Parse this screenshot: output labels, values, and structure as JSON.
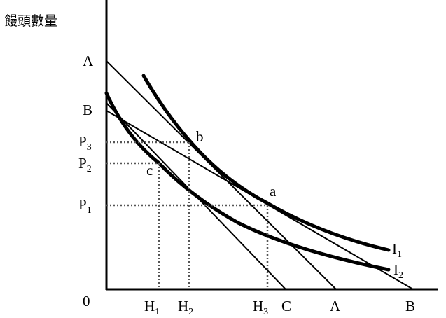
{
  "y_axis_title": "饅頭數量",
  "y_labels": {
    "A": "A",
    "B": "B",
    "P3": {
      "base": "P",
      "sub": "3"
    },
    "P2": {
      "base": "P",
      "sub": "2"
    },
    "P1": {
      "base": "P",
      "sub": "1"
    }
  },
  "origin": "0",
  "x_labels": {
    "H1": {
      "base": "H",
      "sub": "1"
    },
    "H2": {
      "base": "H",
      "sub": "2"
    },
    "H3": {
      "base": "H",
      "sub": "3"
    },
    "C": "C",
    "A": "A",
    "B": "B"
  },
  "points": {
    "a": "a",
    "b": "b",
    "c": "c"
  },
  "curves": {
    "I1": {
      "base": "I",
      "sub": "1"
    },
    "I2": {
      "base": "I",
      "sub": "2"
    }
  }
}
